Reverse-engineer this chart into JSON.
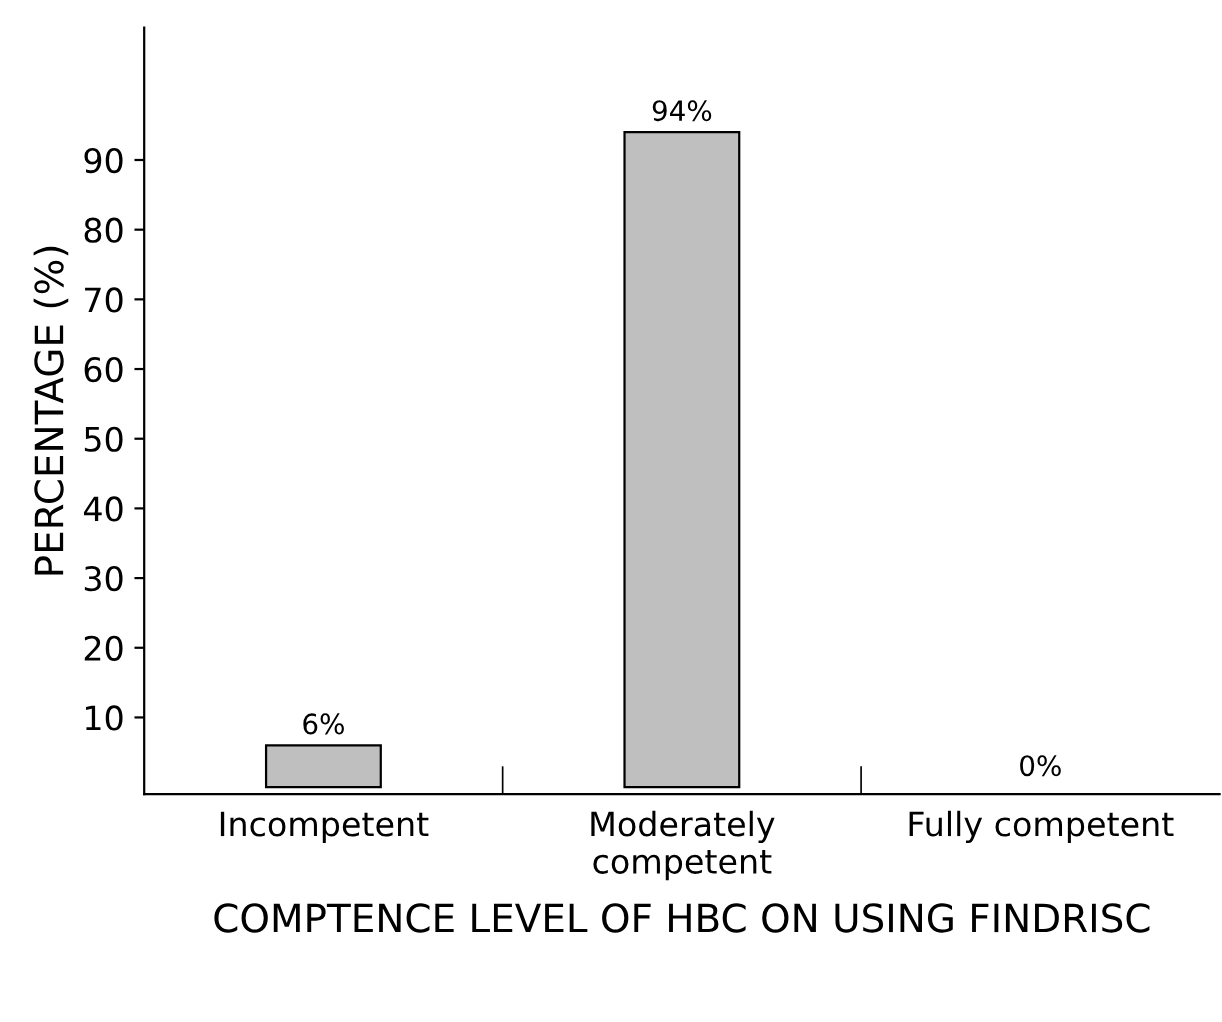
{
  "chart_data": {
    "type": "bar",
    "xlabel": "COMPTENCE LEVEL OF HBC ON USING FINDRISC",
    "ylabel": "PERCENTAGE (%)",
    "categories": [
      "Incompetent",
      "Moderately\ncompetent",
      "Fully competent"
    ],
    "values": [
      6,
      94,
      0
    ],
    "value_labels": [
      "6%",
      "94%",
      "0%"
    ],
    "color": "#bfbfbf",
    "ylim": [
      -1,
      109
    ],
    "yticks": [
      10,
      20,
      30,
      40,
      50,
      60,
      70,
      80,
      90
    ],
    "grid": false,
    "legend": false
  }
}
